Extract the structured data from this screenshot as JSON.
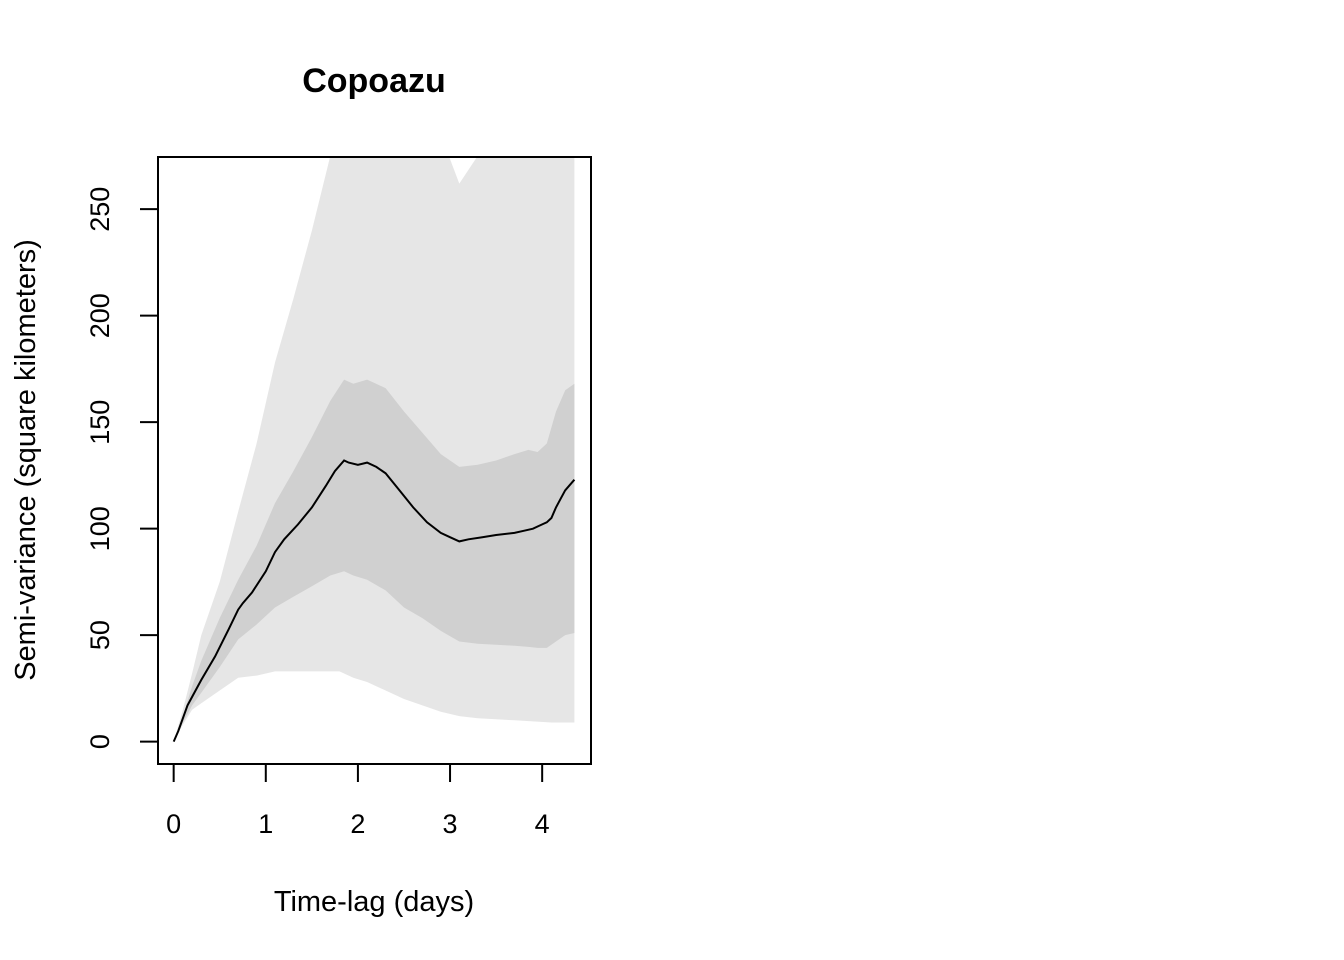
{
  "chart_data": {
    "type": "area",
    "title": "Copoazu",
    "xlabel": "Time-lag (days)",
    "ylabel": "Semi-variance (square kilometers)",
    "xlim": [
      -0.17,
      4.53
    ],
    "ylim": [
      -10.5,
      274.5
    ],
    "x_ticks": [
      0,
      1,
      2,
      3,
      4
    ],
    "y_ticks": [
      0,
      50,
      100,
      150,
      200,
      250
    ],
    "colors": {
      "outer_band": "#e6e6e6",
      "inner_band": "#d0d0d0",
      "line": "#000000",
      "frame": "#000000"
    },
    "series": [
      {
        "role": "outer-band",
        "x": [
          0,
          0.1,
          0.2,
          0.3,
          0.5,
          0.7,
          0.9,
          1.1,
          1.3,
          1.5,
          1.7,
          1.8,
          1.95,
          2.1,
          2.3,
          2.5,
          2.7,
          2.9,
          3.1,
          3.3,
          3.5,
          3.7,
          3.9,
          4.1,
          4.35
        ],
        "lower": [
          0,
          8,
          15,
          18,
          24,
          30,
          31,
          33,
          33,
          33,
          33,
          33,
          30,
          28,
          24,
          20,
          17,
          14,
          12,
          11,
          10.5,
          10,
          9.5,
          9,
          9
        ],
        "upper": [
          0,
          15,
          32,
          50,
          75,
          108,
          140,
          178,
          208,
          240,
          275,
          300,
          300,
          300,
          300,
          300,
          300,
          285,
          262,
          275,
          290,
          300,
          300,
          300,
          300
        ]
      },
      {
        "role": "inner-band",
        "x": [
          0,
          0.1,
          0.2,
          0.3,
          0.5,
          0.7,
          0.9,
          1.1,
          1.3,
          1.5,
          1.7,
          1.85,
          1.95,
          2.1,
          2.3,
          2.5,
          2.7,
          2.9,
          3.1,
          3.3,
          3.5,
          3.7,
          3.85,
          3.95,
          4.05,
          4.15,
          4.25,
          4.35
        ],
        "lower": [
          0,
          9,
          17,
          23,
          35,
          48,
          55,
          63,
          68,
          73,
          78,
          80,
          78,
          76,
          71,
          63,
          58,
          52,
          47,
          46,
          45.5,
          45,
          44.5,
          44,
          44,
          47,
          50,
          51
        ],
        "upper": [
          0,
          12,
          26,
          38,
          58,
          76,
          92,
          112,
          127,
          143,
          160,
          170,
          168,
          170,
          166,
          155,
          145,
          135,
          129,
          130,
          132,
          135,
          137,
          136,
          140,
          155,
          165,
          168
        ]
      },
      {
        "role": "estimate-line",
        "x": [
          0,
          0.05,
          0.1,
          0.15,
          0.2,
          0.3,
          0.45,
          0.6,
          0.7,
          0.75,
          0.85,
          1.0,
          1.1,
          1.2,
          1.35,
          1.5,
          1.65,
          1.75,
          1.85,
          1.9,
          2.0,
          2.1,
          2.2,
          2.3,
          2.45,
          2.6,
          2.75,
          2.9,
          3.0,
          3.1,
          3.2,
          3.35,
          3.5,
          3.7,
          3.8,
          3.9,
          3.95,
          4.0,
          4.05,
          4.1,
          4.15,
          4.2,
          4.25,
          4.35
        ],
        "y": [
          0,
          5,
          11,
          17,
          21,
          29,
          40,
          53,
          62,
          65,
          70,
          80,
          89,
          95,
          102,
          110,
          120,
          127,
          132,
          131,
          130,
          131,
          129,
          126,
          118,
          110,
          103,
          98,
          96,
          94,
          95,
          96,
          97,
          98,
          99,
          100,
          101,
          102,
          103,
          105,
          110,
          114,
          118,
          123
        ]
      }
    ]
  }
}
